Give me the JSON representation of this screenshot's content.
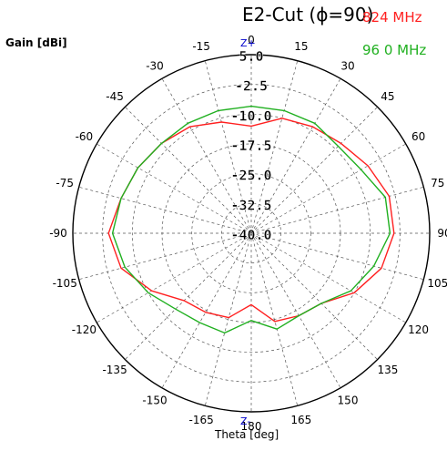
{
  "chart_data": {
    "type": "polar",
    "title": "E2-Cut (ϕ=90)",
    "radial_label": "Gain [dBi]",
    "angular_label": "Theta [deg]",
    "top_marker": "Z+",
    "bottom_marker": "Z-",
    "radial_range": [
      -40,
      5
    ],
    "radial_ticks": [
      "5.0",
      "-2.5",
      "-10.0",
      "-17.5",
      "-25.0",
      "-32.5",
      "-40.0"
    ],
    "radial_tick_values": [
      5,
      -2.5,
      -10,
      -17.5,
      -25,
      -32.5,
      -40
    ],
    "angle_ticks": [
      0,
      15,
      30,
      45,
      60,
      75,
      90,
      105,
      120,
      135,
      150,
      165,
      180,
      -165,
      -150,
      -135,
      -120,
      -105,
      -90,
      -75,
      -60,
      -45,
      -30,
      -15
    ],
    "angle_tick_labels": [
      "0",
      "15",
      "30",
      "45",
      "60",
      "75",
      "90",
      "105",
      "120",
      "135",
      "150",
      "165",
      "180",
      "-165",
      "-150",
      "-135",
      "-120",
      "-105",
      "-90",
      "-75",
      "-60",
      "-45",
      "-30",
      "-15"
    ],
    "grid": true,
    "legend_position": "top-right",
    "series": [
      {
        "name": "824 MHz",
        "color": "#ff2020",
        "theta": [
          0,
          15,
          30,
          45,
          60,
          75,
          90,
          105,
          120,
          135,
          150,
          165,
          180,
          -165,
          -150,
          -135,
          -120,
          -105,
          -90,
          -75,
          -60,
          -45,
          -30,
          -15
        ],
        "gain": [
          -13,
          -10,
          -9,
          -8,
          -6,
          -4,
          -4,
          -6,
          -10,
          -15,
          -16,
          -17,
          -22,
          -18,
          -17,
          -16,
          -11,
          -6,
          -4,
          -6,
          -7,
          -8,
          -9,
          -11
        ]
      },
      {
        "name": "96 0 MHz",
        "color": "#20b020",
        "theta": [
          0,
          15,
          30,
          45,
          60,
          75,
          90,
          105,
          120,
          135,
          150,
          165,
          180,
          -165,
          -150,
          -135,
          -120,
          -105,
          -90,
          -75,
          -60,
          -45,
          -30,
          -15
        ],
        "gain": [
          -8,
          -8,
          -8,
          -9,
          -8,
          -5,
          -5,
          -8,
          -11,
          -15,
          -16,
          -15,
          -18,
          -14,
          -14,
          -13,
          -10,
          -7,
          -5,
          -6,
          -7,
          -8,
          -8,
          -8
        ]
      }
    ]
  }
}
